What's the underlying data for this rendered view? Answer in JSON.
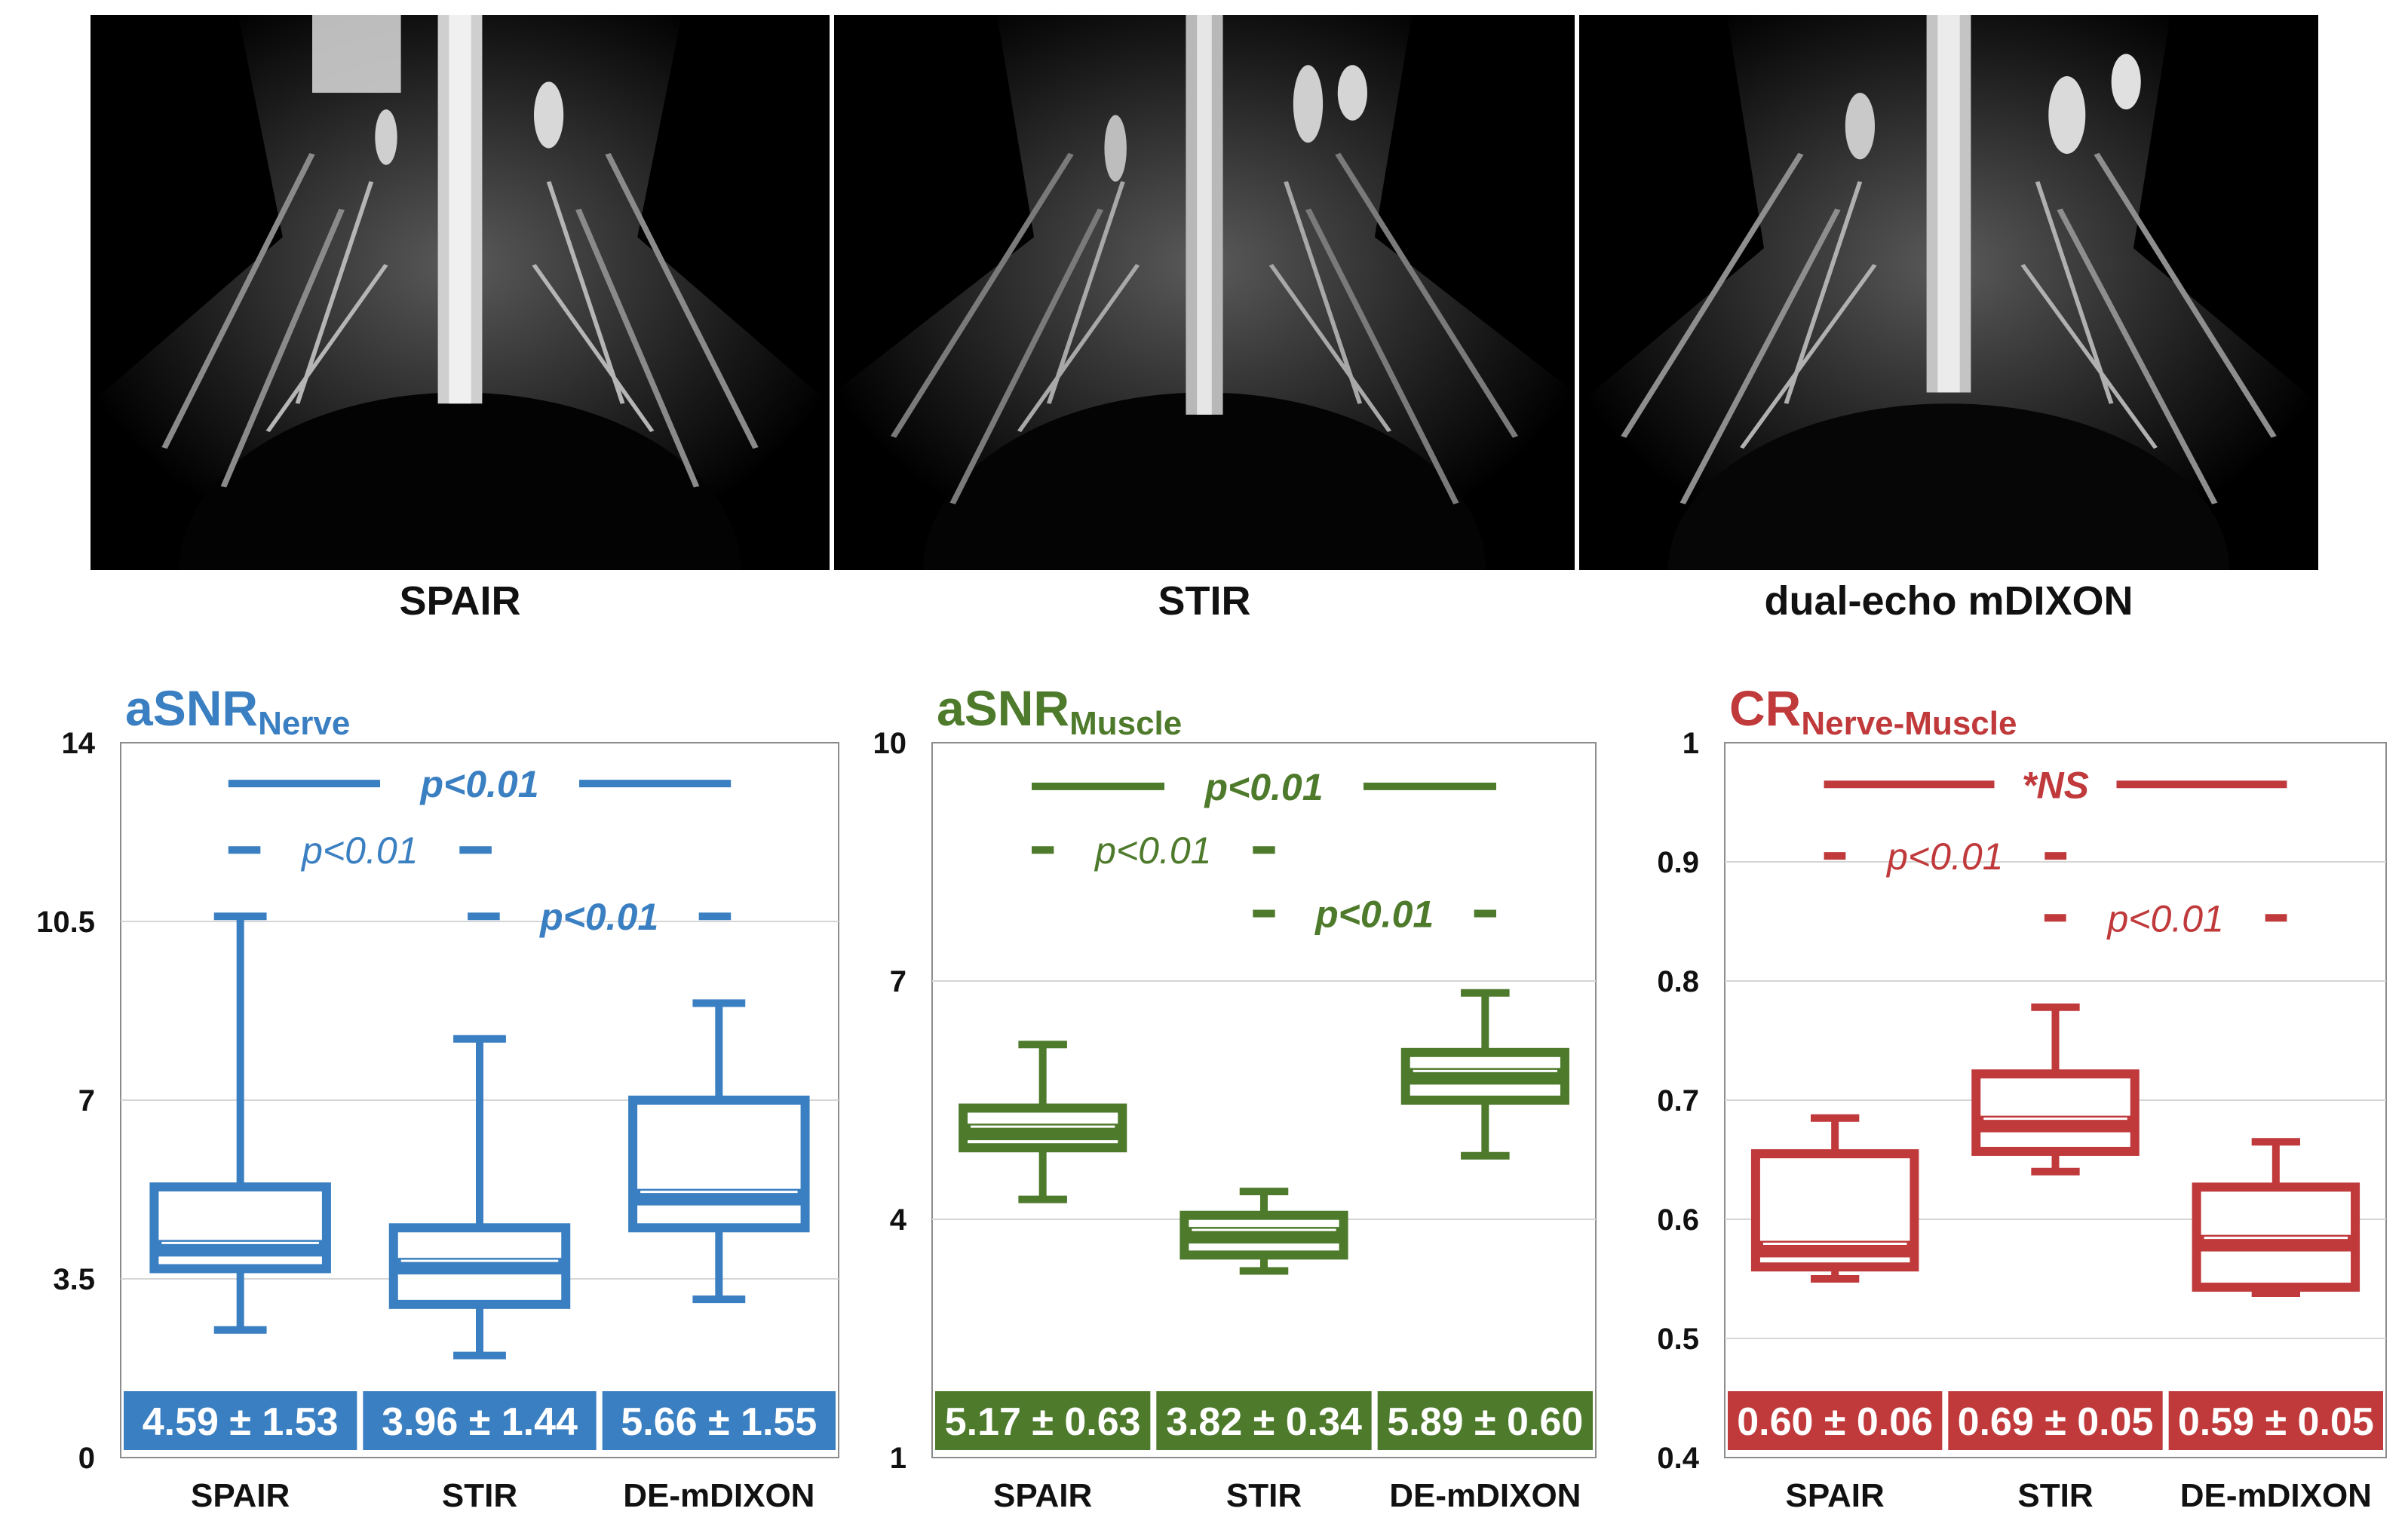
{
  "images": [
    {
      "caption": "SPAIR"
    },
    {
      "caption": "STIR"
    },
    {
      "caption": "dual-echo mDIXON"
    }
  ],
  "chart_data": [
    {
      "type": "box",
      "title": "aSNR",
      "title_sub": "Nerve",
      "color": "#3a7fc1",
      "ylim": [
        0,
        14
      ],
      "yticks": [
        "0",
        "3.5",
        "7",
        "10.5",
        "14"
      ],
      "categories": [
        "SPAIR",
        "STIR",
        "DE-mDIXON"
      ],
      "boxes": [
        {
          "min": 2.5,
          "q1": 3.7,
          "median": 4.1,
          "q3": 5.3,
          "max": 10.6,
          "label": "4.59 ± 1.53"
        },
        {
          "min": 2.0,
          "q1": 3.0,
          "median": 3.75,
          "q3": 4.5,
          "max": 8.2,
          "label": "3.96 ± 1.44"
        },
        {
          "min": 3.1,
          "q1": 4.5,
          "median": 5.1,
          "q3": 7.0,
          "max": 8.9,
          "label": "5.66 ± 1.55"
        }
      ],
      "brackets": [
        {
          "from": 0,
          "to": 2,
          "level": 13.2,
          "text": "p<0.01",
          "bold": true
        },
        {
          "from": 0,
          "to": 1,
          "level": 11.9,
          "text": "p<0.01",
          "bold": false
        },
        {
          "from": 1,
          "to": 2,
          "level": 10.6,
          "text": "p<0.01",
          "bold": true
        }
      ]
    },
    {
      "type": "box",
      "title": "aSNR",
      "title_sub": "Muscle",
      "color": "#4e7a2c",
      "ylim": [
        1,
        10
      ],
      "yticks": [
        "1",
        "4",
        "7",
        "10"
      ],
      "categories": [
        "SPAIR",
        "STIR",
        "DE-mDIXON"
      ],
      "boxes": [
        {
          "min": 4.25,
          "q1": 4.9,
          "median": 5.1,
          "q3": 5.4,
          "max": 6.2,
          "label": "5.17 ± 0.63"
        },
        {
          "min": 3.35,
          "q1": 3.55,
          "median": 3.8,
          "q3": 4.05,
          "max": 4.35,
          "label": "3.82 ± 0.34"
        },
        {
          "min": 4.8,
          "q1": 5.5,
          "median": 5.8,
          "q3": 6.1,
          "max": 6.85,
          "label": "5.89 ± 0.60"
        }
      ],
      "brackets": [
        {
          "from": 0,
          "to": 2,
          "level": 9.45,
          "text": "p<0.01",
          "bold": true
        },
        {
          "from": 0,
          "to": 1,
          "level": 8.65,
          "text": "p<0.01",
          "bold": false
        },
        {
          "from": 1,
          "to": 2,
          "level": 7.85,
          "text": "p<0.01",
          "bold": true
        }
      ]
    },
    {
      "type": "box",
      "title": "CR",
      "title_sub": "Nerve-Muscle",
      "color": "#c0393b",
      "ylim": [
        0.4,
        1
      ],
      "yticks": [
        "0.4",
        "0.5",
        "0.6",
        "0.7",
        "0.8",
        "0.9",
        "1"
      ],
      "categories": [
        "SPAIR",
        "STIR",
        "DE-mDIXON"
      ],
      "boxes": [
        {
          "min": 0.55,
          "q1": 0.56,
          "median": 0.575,
          "q3": 0.655,
          "max": 0.685,
          "label": "0.60 ± 0.06"
        },
        {
          "min": 0.64,
          "q1": 0.657,
          "median": 0.68,
          "q3": 0.722,
          "max": 0.778,
          "label": "0.69 ± 0.05"
        },
        {
          "min": 0.538,
          "q1": 0.543,
          "median": 0.58,
          "q3": 0.627,
          "max": 0.665,
          "label": "0.59 ± 0.05"
        }
      ],
      "brackets": [
        {
          "from": 0,
          "to": 2,
          "level": 0.965,
          "text": "*NS",
          "bold": true
        },
        {
          "from": 0,
          "to": 1,
          "level": 0.905,
          "text": "p<0.01",
          "bold": false
        },
        {
          "from": 1,
          "to": 2,
          "level": 0.853,
          "text": "p<0.01",
          "bold": false
        }
      ]
    }
  ]
}
